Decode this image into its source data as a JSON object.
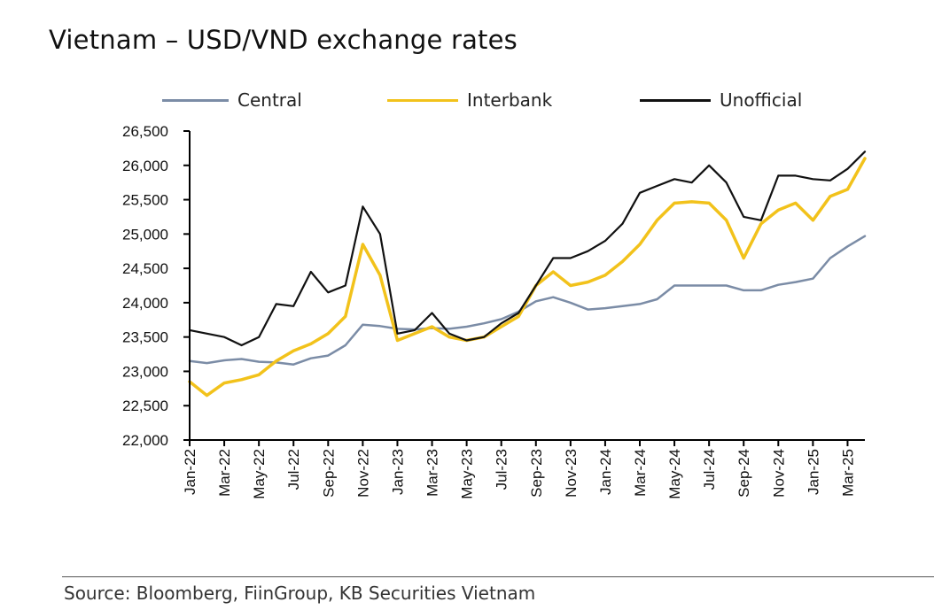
{
  "title": "Vietnam – USD/VND exchange rates",
  "source": "Source: Bloomberg, FiinGroup, KB Securities Vietnam",
  "colors": {
    "central": "#7b8ca6",
    "interbank": "#f2c21b",
    "unofficial": "#111111"
  },
  "legend": [
    {
      "label": "Central",
      "color": "#7b8ca6"
    },
    {
      "label": "Interbank",
      "color": "#f2c21b"
    },
    {
      "label": "Unofficial",
      "color": "#111111"
    }
  ],
  "chart_data": {
    "type": "line",
    "x_axis_type": "monthly",
    "y_tick_labels": [
      "22,000",
      "22,500",
      "23,000",
      "23,500",
      "24,000",
      "24,500",
      "25,000",
      "25,500",
      "26,000",
      "26,500"
    ],
    "y_ticks": [
      22000,
      22500,
      23000,
      23500,
      24000,
      24500,
      25000,
      25500,
      26000,
      26500
    ],
    "ylim": [
      22000,
      26500
    ],
    "x_tick_labels": [
      "Jan-22",
      "Mar-22",
      "May-22",
      "Jul-22",
      "Sep-22",
      "Nov-22",
      "Jan-23",
      "Mar-23",
      "May-23",
      "Jul-23",
      "Sep-23",
      "Nov-23",
      "Jan-24",
      "Mar-24",
      "May-24",
      "Jul-24",
      "Sep-24",
      "Nov-24",
      "Jan-25",
      "Mar-25"
    ],
    "x_ticks": [
      "2022-01",
      "2022-03",
      "2022-05",
      "2022-07",
      "2022-09",
      "2022-11",
      "2023-01",
      "2023-03",
      "2023-05",
      "2023-07",
      "2023-09",
      "2023-11",
      "2024-01",
      "2024-03",
      "2024-05",
      "2024-07",
      "2024-09",
      "2024-11",
      "2025-01",
      "2025-03"
    ],
    "xlim": [
      "2022-01",
      "2025-04"
    ],
    "legend_position": "top",
    "grid": false,
    "series": [
      {
        "name": "Central",
        "points": [
          [
            "2022-01",
            23150
          ],
          [
            "2022-02",
            23120
          ],
          [
            "2022-03",
            23160
          ],
          [
            "2022-04",
            23180
          ],
          [
            "2022-05",
            23140
          ],
          [
            "2022-06",
            23130
          ],
          [
            "2022-07",
            23100
          ],
          [
            "2022-08",
            23190
          ],
          [
            "2022-09",
            23230
          ],
          [
            "2022-10",
            23380
          ],
          [
            "2022-11",
            23680
          ],
          [
            "2022-12",
            23660
          ],
          [
            "2023-01",
            23620
          ],
          [
            "2023-02",
            23610
          ],
          [
            "2023-03",
            23630
          ],
          [
            "2023-04",
            23620
          ],
          [
            "2023-05",
            23650
          ],
          [
            "2023-06",
            23700
          ],
          [
            "2023-07",
            23760
          ],
          [
            "2023-08",
            23870
          ],
          [
            "2023-09",
            24020
          ],
          [
            "2023-10",
            24080
          ],
          [
            "2023-11",
            24000
          ],
          [
            "2023-12",
            23900
          ],
          [
            "2024-01",
            23920
          ],
          [
            "2024-02",
            23950
          ],
          [
            "2024-03",
            23980
          ],
          [
            "2024-04",
            24050
          ],
          [
            "2024-05",
            24250
          ],
          [
            "2024-06",
            24250
          ],
          [
            "2024-07",
            24250
          ],
          [
            "2024-08",
            24250
          ],
          [
            "2024-09",
            24180
          ],
          [
            "2024-10",
            24180
          ],
          [
            "2024-11",
            24260
          ],
          [
            "2024-12",
            24300
          ],
          [
            "2025-01",
            24350
          ],
          [
            "2025-02",
            24650
          ],
          [
            "2025-03",
            24820
          ],
          [
            "2025-04",
            24970
          ]
        ]
      },
      {
        "name": "Interbank",
        "points": [
          [
            "2022-01",
            22850
          ],
          [
            "2022-02",
            22650
          ],
          [
            "2022-03",
            22830
          ],
          [
            "2022-04",
            22880
          ],
          [
            "2022-05",
            22950
          ],
          [
            "2022-06",
            23150
          ],
          [
            "2022-07",
            23300
          ],
          [
            "2022-08",
            23400
          ],
          [
            "2022-09",
            23550
          ],
          [
            "2022-10",
            23800
          ],
          [
            "2022-11",
            24850
          ],
          [
            "2022-12",
            24400
          ],
          [
            "2023-01",
            23450
          ],
          [
            "2023-02",
            23550
          ],
          [
            "2023-03",
            23650
          ],
          [
            "2023-04",
            23500
          ],
          [
            "2023-05",
            23450
          ],
          [
            "2023-06",
            23500
          ],
          [
            "2023-07",
            23650
          ],
          [
            "2023-08",
            23800
          ],
          [
            "2023-09",
            24250
          ],
          [
            "2023-10",
            24450
          ],
          [
            "2023-11",
            24250
          ],
          [
            "2023-12",
            24300
          ],
          [
            "2024-01",
            24400
          ],
          [
            "2024-02",
            24600
          ],
          [
            "2024-03",
            24850
          ],
          [
            "2024-04",
            25200
          ],
          [
            "2024-05",
            25450
          ],
          [
            "2024-06",
            25470
          ],
          [
            "2024-07",
            25450
          ],
          [
            "2024-08",
            25200
          ],
          [
            "2024-09",
            24650
          ],
          [
            "2024-10",
            25150
          ],
          [
            "2024-11",
            25350
          ],
          [
            "2024-12",
            25450
          ],
          [
            "2025-01",
            25200
          ],
          [
            "2025-02",
            25550
          ],
          [
            "2025-03",
            25650
          ],
          [
            "2025-04",
            26100
          ]
        ]
      },
      {
        "name": "Unofficial",
        "points": [
          [
            "2022-01",
            23600
          ],
          [
            "2022-02",
            23550
          ],
          [
            "2022-03",
            23500
          ],
          [
            "2022-04",
            23380
          ],
          [
            "2022-05",
            23500
          ],
          [
            "2022-06",
            23980
          ],
          [
            "2022-07",
            23950
          ],
          [
            "2022-08",
            24450
          ],
          [
            "2022-09",
            24150
          ],
          [
            "2022-10",
            24250
          ],
          [
            "2022-11",
            25400
          ],
          [
            "2022-12",
            25000
          ],
          [
            "2023-01",
            23550
          ],
          [
            "2023-02",
            23600
          ],
          [
            "2023-03",
            23850
          ],
          [
            "2023-04",
            23550
          ],
          [
            "2023-05",
            23450
          ],
          [
            "2023-06",
            23500
          ],
          [
            "2023-07",
            23700
          ],
          [
            "2023-08",
            23850
          ],
          [
            "2023-09",
            24250
          ],
          [
            "2023-10",
            24650
          ],
          [
            "2023-11",
            24650
          ],
          [
            "2023-12",
            24750
          ],
          [
            "2024-01",
            24900
          ],
          [
            "2024-02",
            25150
          ],
          [
            "2024-03",
            25600
          ],
          [
            "2024-04",
            25700
          ],
          [
            "2024-05",
            25800
          ],
          [
            "2024-06",
            25750
          ],
          [
            "2024-07",
            26000
          ],
          [
            "2024-08",
            25750
          ],
          [
            "2024-09",
            25250
          ],
          [
            "2024-10",
            25200
          ],
          [
            "2024-11",
            25850
          ],
          [
            "2024-12",
            25850
          ],
          [
            "2025-01",
            25800
          ],
          [
            "2025-02",
            25780
          ],
          [
            "2025-03",
            25950
          ],
          [
            "2025-04",
            26200
          ]
        ]
      }
    ]
  }
}
